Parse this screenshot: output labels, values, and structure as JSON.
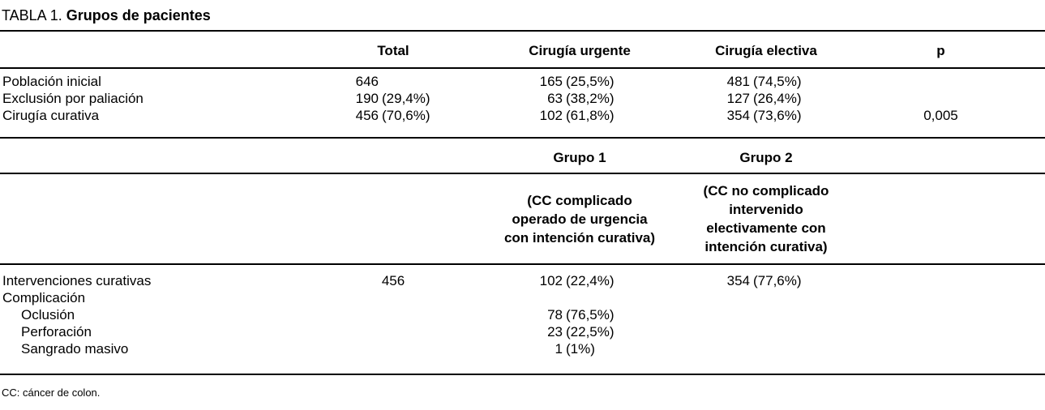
{
  "title": {
    "label": "TABLA 1.",
    "name": "Grupos de pacientes"
  },
  "colors": {
    "text": "#000000",
    "background": "#ffffff",
    "rule": "#000000"
  },
  "table_top": {
    "columns": [
      "",
      "Total",
      "Cirugía urgente",
      "Cirugía electiva",
      "p"
    ],
    "rows": [
      {
        "label": "Población inicial",
        "total": {
          "n": "646",
          "pct": ""
        },
        "urgente": {
          "n": "165",
          "pct": "(25,5%)"
        },
        "electiva": {
          "n": "481",
          "pct": "(74,5%)"
        },
        "p": ""
      },
      {
        "label": "Exclusión por paliación",
        "total": {
          "n": "190",
          "pct": "(29,4%)"
        },
        "urgente": {
          "n": "63",
          "pct": "(38,2%)"
        },
        "electiva": {
          "n": "127",
          "pct": "(26,4%)"
        },
        "p": ""
      },
      {
        "label": "Cirugía curativa",
        "total": {
          "n": "456",
          "pct": "(70,6%)"
        },
        "urgente": {
          "n": "102",
          "pct": "(61,8%)"
        },
        "electiva": {
          "n": "354",
          "pct": "(73,6%)"
        },
        "p": "0,005"
      }
    ]
  },
  "groups": {
    "group1": {
      "title": "Grupo 1",
      "desc": [
        "(CC complicado",
        "operado de urgencia",
        "con intención curativa)"
      ]
    },
    "group2": {
      "title": "Grupo 2",
      "desc": [
        "(CC no complicado",
        "intervenido",
        "electivamente con",
        "intención curativa)"
      ]
    }
  },
  "table_bottom": {
    "rows": [
      {
        "label": "Intervenciones curativas",
        "indent": false,
        "total": "456",
        "grupo1": {
          "n": "102",
          "pct": "(22,4%)"
        },
        "grupo2": {
          "n": "354",
          "pct": "(77,6%)"
        }
      },
      {
        "label": "Complicación",
        "indent": false,
        "total": "",
        "grupo1": {
          "n": "",
          "pct": ""
        },
        "grupo2": {
          "n": "",
          "pct": ""
        }
      },
      {
        "label": "Oclusión",
        "indent": true,
        "total": "",
        "grupo1": {
          "n": "78",
          "pct": "(76,5%)"
        },
        "grupo2": {
          "n": "",
          "pct": ""
        }
      },
      {
        "label": "Perforación",
        "indent": true,
        "total": "",
        "grupo1": {
          "n": "23",
          "pct": "(22,5%)"
        },
        "grupo2": {
          "n": "",
          "pct": ""
        }
      },
      {
        "label": "Sangrado masivo",
        "indent": true,
        "total": "",
        "grupo1": {
          "n": "1",
          "pct": "(1%)"
        },
        "grupo2": {
          "n": "",
          "pct": ""
        }
      }
    ]
  },
  "footnote": "CC: cáncer de colon."
}
